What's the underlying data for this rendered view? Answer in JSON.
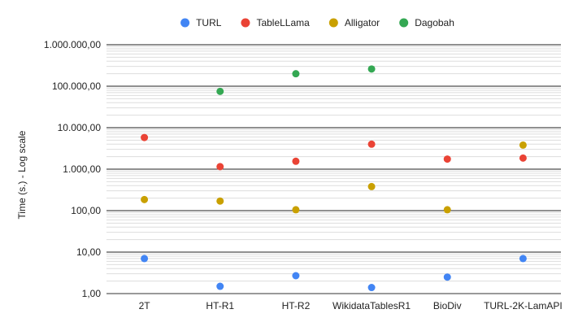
{
  "chart_data": {
    "type": "scatter",
    "title": "",
    "xlabel": "",
    "ylabel": "Time (s.) - Log scale",
    "yscale": "log",
    "ylim": [
      1,
      1000000
    ],
    "grid": true,
    "legend_position": "top",
    "categories": [
      "2T",
      "HT-R1",
      "HT-R2",
      "WikidataTablesR1",
      "BioDiv",
      "TURL-2K-LamAPI"
    ],
    "y_tick_labels": [
      "1,00",
      "10,00",
      "100,00",
      "1.000,00",
      "10.000,00",
      "100.000,00",
      "1.000.000,00"
    ],
    "y_tick_values": [
      1,
      10,
      100,
      1000,
      10000,
      100000,
      1000000
    ],
    "series": [
      {
        "name": "TURL",
        "color": "#4285f4",
        "values": [
          7,
          1.5,
          2.7,
          1.4,
          2.5,
          7
        ]
      },
      {
        "name": "TableLLama",
        "color": "#ea4335",
        "values": [
          5800,
          1150,
          1550,
          4000,
          1750,
          1850
        ]
      },
      {
        "name": "Alligator",
        "color": "#c9a000",
        "values": [
          185,
          170,
          105,
          380,
          105,
          3800
        ]
      },
      {
        "name": "Dagobah",
        "color": "#34a853",
        "values": [
          null,
          75000,
          200000,
          260000,
          null,
          null
        ]
      }
    ]
  }
}
